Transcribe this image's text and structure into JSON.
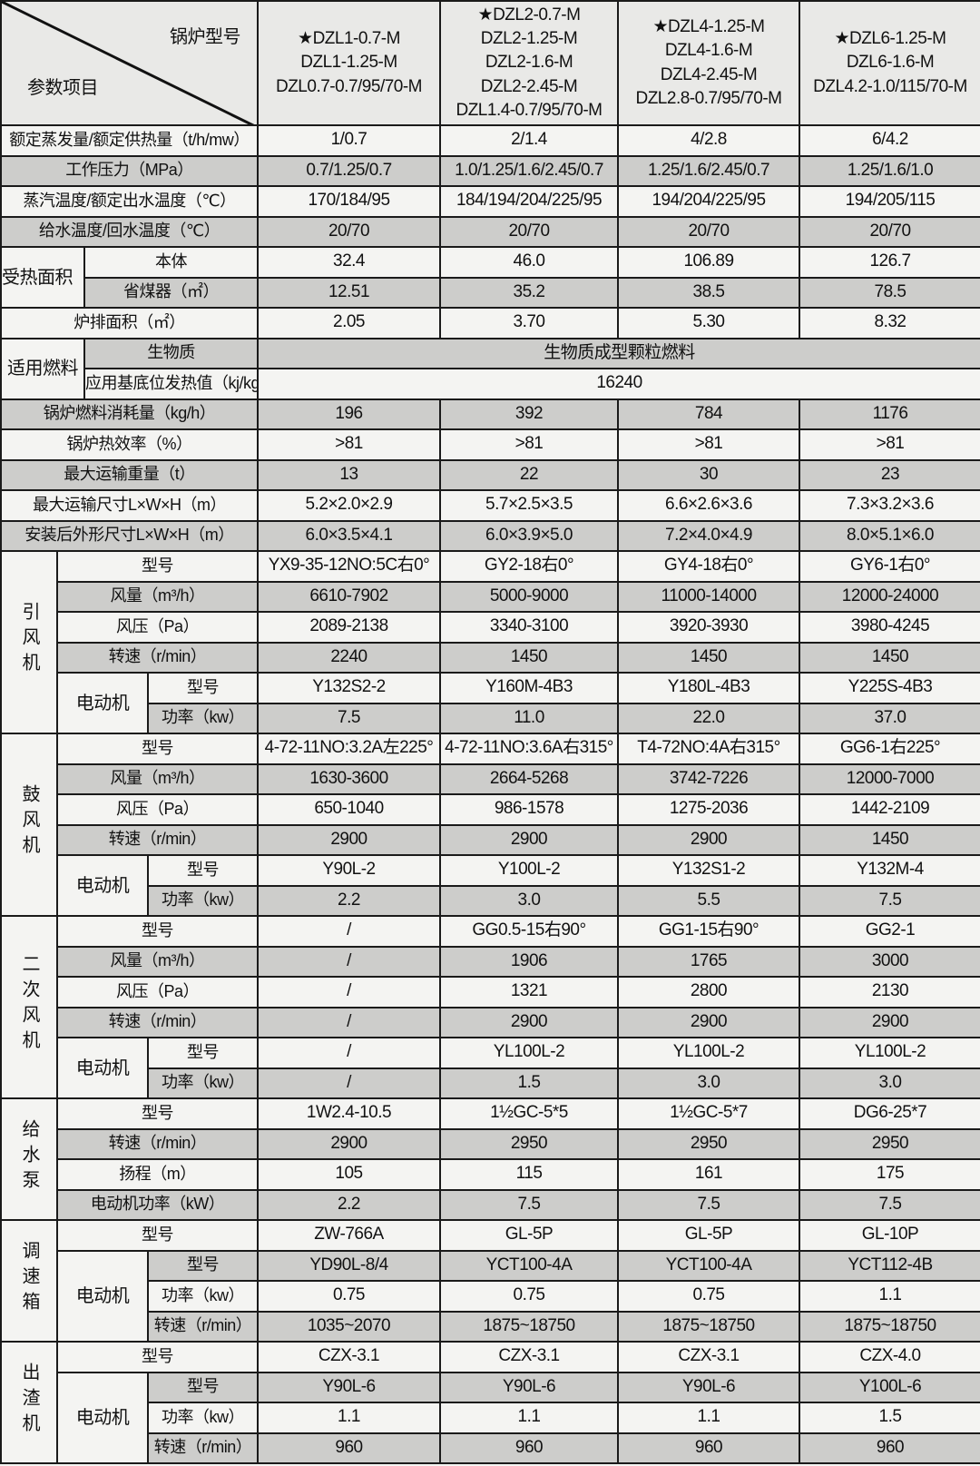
{
  "header": {
    "model_label": "锅炉型号",
    "param_label": "参数项目",
    "models": [
      [
        "★DZL1-0.7-M",
        "DZL1-1.25-M",
        "DZL0.7-0.7/95/70-M"
      ],
      [
        "★DZL2-0.7-M",
        "DZL2-1.25-M",
        "DZL2-1.6-M",
        "DZL2-2.45-M",
        "DZL1.4-0.7/95/70-M"
      ],
      [
        "★DZL4-1.25-M",
        "DZL4-1.6-M",
        "DZL4-2.45-M",
        "DZL2.8-0.7/95/70-M"
      ],
      [
        "★DZL6-1.25-M",
        "DZL6-1.6-M",
        "DZL4.2-1.0/115/70-M"
      ]
    ]
  },
  "rows": [
    {
      "label": "额定蒸发量/额定供热量（t/h/mw）",
      "values": [
        "1/0.7",
        "2/1.4",
        "4/2.8",
        "6/4.2"
      ]
    },
    {
      "label": "工作压力（MPa）",
      "values": [
        "0.7/1.25/0.7",
        "1.0/1.25/1.6/2.45/0.7",
        "1.25/1.6/2.45/0.7",
        "1.25/1.6/1.0"
      ]
    },
    {
      "label": "蒸汽温度/额定出水温度（℃）",
      "values": [
        "170/184/95",
        "184/194/204/225/95",
        "194/204/225/95",
        "194/205/115"
      ]
    },
    {
      "label": "给水温度/回水温度（℃）",
      "values": [
        "20/70",
        "20/70",
        "20/70",
        "20/70"
      ]
    },
    {
      "group": "受热面积（㎡）",
      "type": "pair",
      "items": [
        {
          "label": "本体",
          "values": [
            "32.4",
            "46.0",
            "106.89",
            "126.7"
          ]
        },
        {
          "label": "省煤器（㎡）",
          "values": [
            "12.51",
            "35.2",
            "38.5",
            "78.5"
          ]
        }
      ]
    },
    {
      "label": "炉排面积（㎡）",
      "values": [
        "2.05",
        "3.70",
        "5.30",
        "8.32"
      ]
    },
    {
      "group": "适用燃料",
      "type": "merged",
      "items": [
        {
          "label": "生物质",
          "merged": "生物质成型颗粒燃料"
        },
        {
          "label": "应用基底位发热值（kj/kg）",
          "merged": "16240"
        }
      ]
    },
    {
      "label": "锅炉燃料消耗量（kg/h）",
      "values": [
        "196",
        "392",
        "784",
        "1176"
      ]
    },
    {
      "label": "锅炉热效率（%）",
      "values": [
        ">81",
        ">81",
        ">81",
        ">81"
      ]
    },
    {
      "label": "最大运输重量（t）",
      "values": [
        "13",
        "22",
        "30",
        "23"
      ]
    },
    {
      "label": "最大运输尺寸L×W×H（m）",
      "values": [
        "5.2×2.0×2.9",
        "5.7×2.5×3.5",
        "6.6×2.6×3.6",
        "7.3×3.2×3.6"
      ]
    },
    {
      "label": "安装后外形尺寸L×W×H（m）",
      "values": [
        "6.0×3.5×4.1",
        "6.0×3.9×5.0",
        "7.2×4.0×4.9",
        "8.0×5.1×6.0"
      ]
    },
    {
      "group": "引风机",
      "type": "equip",
      "items": [
        {
          "label": "型号",
          "values": [
            "YX9-35-12NO:5C右0°",
            "GY2-18右0°",
            "GY4-18右0°",
            "GY6-1右0°"
          ]
        },
        {
          "label": "风量（m³/h）",
          "values": [
            "6610-7902",
            "5000-9000",
            "11000-14000",
            "12000-24000"
          ]
        },
        {
          "label": "风压（Pa）",
          "values": [
            "2089-2138",
            "3340-3100",
            "3920-3930",
            "3980-4245"
          ]
        },
        {
          "label": "转速（r/min）",
          "values": [
            "2240",
            "1450",
            "1450",
            "1450"
          ]
        }
      ],
      "motor": {
        "label": "电动机",
        "items": [
          {
            "label": "型号",
            "values": [
              "Y132S2-2",
              "Y160M-4B3",
              "Y180L-4B3",
              "Y225S-4B3"
            ]
          },
          {
            "label": "功率（kw）",
            "values": [
              "7.5",
              "11.0",
              "22.0",
              "37.0"
            ]
          }
        ]
      }
    },
    {
      "group": "鼓风机",
      "type": "equip",
      "items": [
        {
          "label": "型号",
          "values": [
            "4-72-11NO:3.2A左225°",
            "4-72-11NO:3.6A右315°",
            "T4-72NO:4A右315°",
            "GG6-1右225°"
          ]
        },
        {
          "label": "风量（m³/h）",
          "values": [
            "1630-3600",
            "2664-5268",
            "3742-7226",
            "12000-7000"
          ]
        },
        {
          "label": "风压（Pa）",
          "values": [
            "650-1040",
            "986-1578",
            "1275-2036",
            "1442-2109"
          ]
        },
        {
          "label": "转速（r/min）",
          "values": [
            "2900",
            "2900",
            "2900",
            "1450"
          ]
        }
      ],
      "motor": {
        "label": "电动机",
        "items": [
          {
            "label": "型号",
            "values": [
              "Y90L-2",
              "Y100L-2",
              "Y132S1-2",
              "Y132M-4"
            ]
          },
          {
            "label": "功率（kw）",
            "values": [
              "2.2",
              "3.0",
              "5.5",
              "7.5"
            ]
          }
        ]
      }
    },
    {
      "group": "二次风机",
      "type": "equip",
      "items": [
        {
          "label": "型号",
          "values": [
            "/",
            "GG0.5-15右90°",
            "GG1-15右90°",
            "GG2-1"
          ]
        },
        {
          "label": "风量（m³/h）",
          "values": [
            "/",
            "1906",
            "1765",
            "3000"
          ]
        },
        {
          "label": "风压（Pa）",
          "values": [
            "/",
            "1321",
            "2800",
            "2130"
          ]
        },
        {
          "label": "转速（r/min）",
          "values": [
            "/",
            "2900",
            "2900",
            "2900"
          ]
        }
      ],
      "motor": {
        "label": "电动机",
        "items": [
          {
            "label": "型号",
            "values": [
              "/",
              "YL100L-2",
              "YL100L-2",
              "YL100L-2"
            ]
          },
          {
            "label": "功率（kw）",
            "values": [
              "/",
              "1.5",
              "3.0",
              "3.0"
            ]
          }
        ]
      }
    },
    {
      "group": "给水泵",
      "type": "equip",
      "items": [
        {
          "label": "型号",
          "values": [
            "1W2.4-10.5",
            "1½GC-5*5",
            "1½GC-5*7",
            "DG6-25*7"
          ]
        },
        {
          "label": "转速（r/min）",
          "values": [
            "2900",
            "2950",
            "2950",
            "2950"
          ]
        },
        {
          "label": "扬程（m）",
          "values": [
            "105",
            "115",
            "161",
            "175"
          ]
        },
        {
          "label": "电动机功率（kW）",
          "values": [
            "2.2",
            "7.5",
            "7.5",
            "7.5"
          ]
        }
      ]
    },
    {
      "group": "调速箱",
      "type": "equip",
      "items": [
        {
          "label": "型号",
          "values": [
            "ZW-766A",
            "GL-5P",
            "GL-5P",
            "GL-10P"
          ]
        }
      ],
      "motor": {
        "label": "电动机",
        "items": [
          {
            "label": "型号",
            "values": [
              "YD90L-8/4",
              "YCT100-4A",
              "YCT100-4A",
              "YCT112-4B"
            ]
          },
          {
            "label": "功率（kw）",
            "values": [
              "0.75",
              "0.75",
              "0.75",
              "1.1"
            ]
          },
          {
            "label": "转速（r/min）",
            "values": [
              "1035~2070",
              "1875~18750",
              "1875~18750",
              "1875~18750"
            ]
          }
        ]
      }
    },
    {
      "group": "出渣机",
      "type": "equip",
      "items": [
        {
          "label": "型号",
          "values": [
            "CZX-3.1",
            "CZX-3.1",
            "CZX-3.1",
            "CZX-4.0"
          ]
        }
      ],
      "motor": {
        "label": "电动机",
        "items": [
          {
            "label": "型号",
            "values": [
              "Y90L-6",
              "Y90L-6",
              "Y90L-6",
              "Y100L-6"
            ]
          },
          {
            "label": "功率（kw）",
            "values": [
              "1.1",
              "1.1",
              "1.1",
              "1.5"
            ]
          },
          {
            "label": "转速（r/min）",
            "values": [
              "960",
              "960",
              "960",
              "960"
            ]
          }
        ]
      }
    }
  ]
}
